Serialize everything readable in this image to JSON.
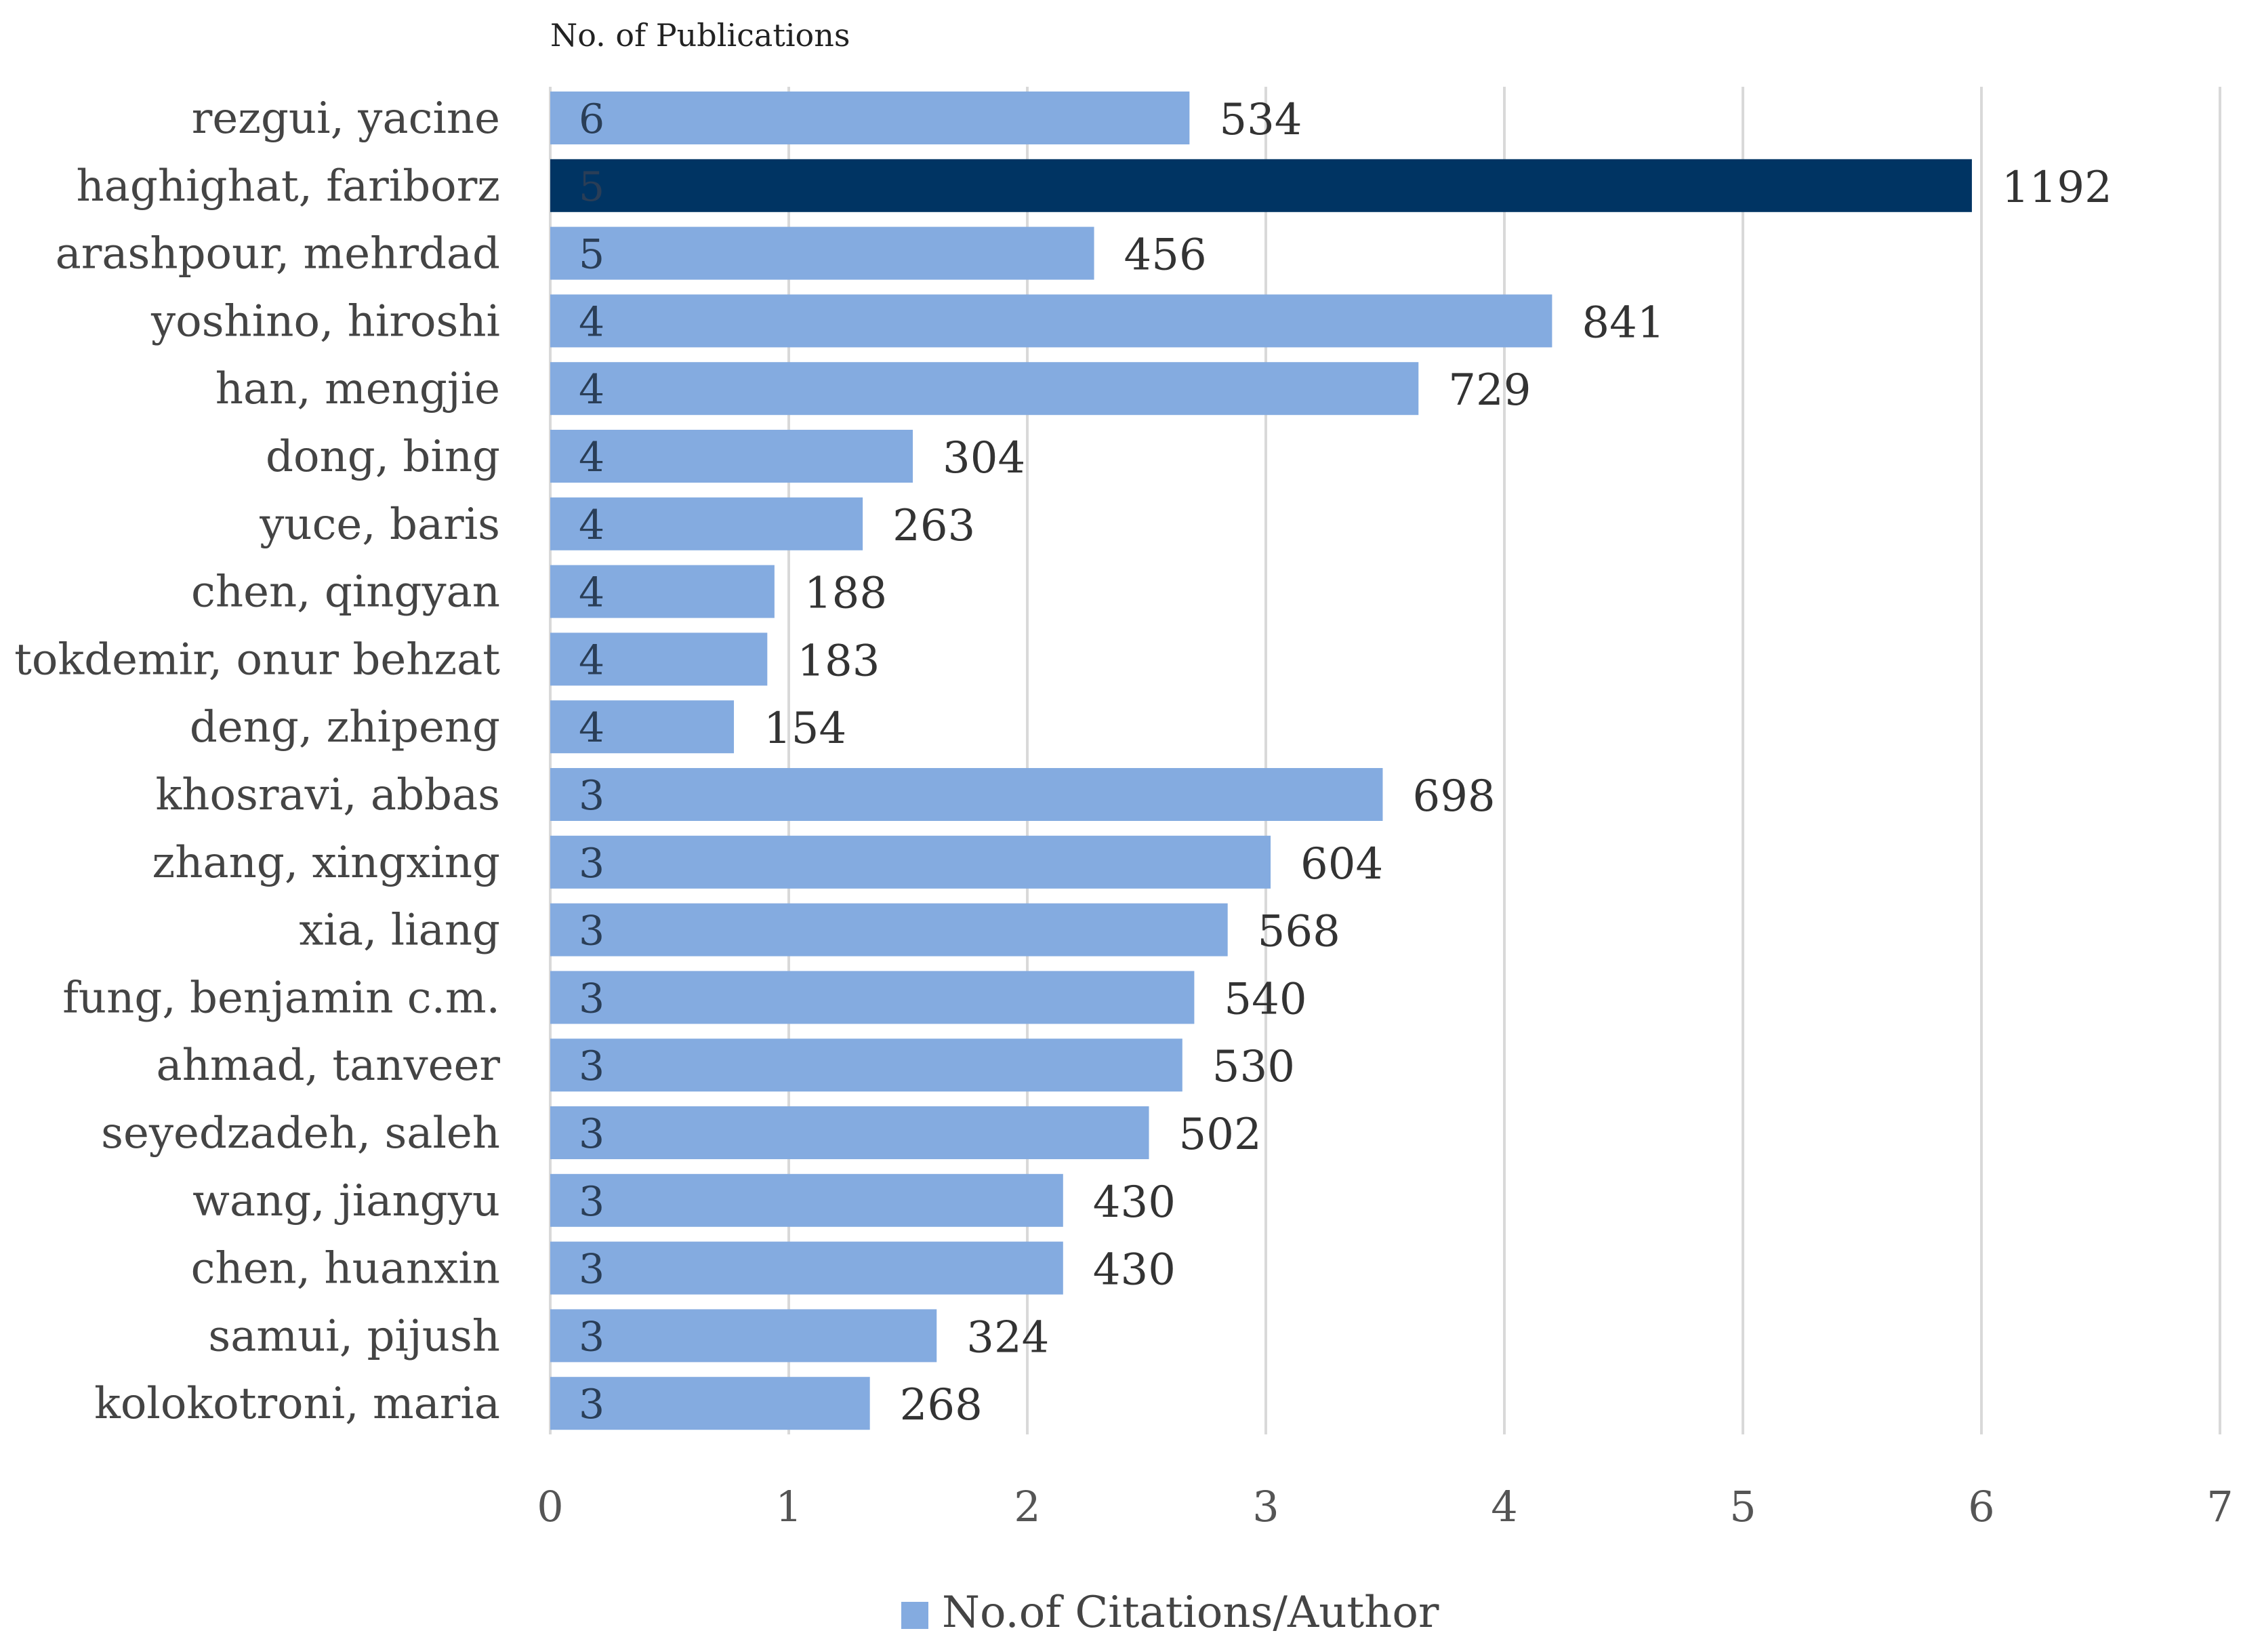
{
  "chart_data": {
    "type": "bar",
    "orientation": "horizontal",
    "title": "",
    "header_label": "No. of Publications",
    "categories": [
      "rezgui, yacine",
      "haghighat, fariborz",
      "arashpour, mehrdad",
      "yoshino, hiroshi",
      "han, mengjie",
      "dong, bing",
      "yuce, baris",
      "chen, qingyan",
      "tokdemir, onur behzat",
      "deng, zhipeng",
      "khosravi, abbas",
      "zhang, xingxing",
      "xia, liang",
      "fung, benjamin c.m.",
      "ahmad, tanveer",
      "seyedzadeh, saleh",
      "wang, jiangyu",
      "chen, huanxin",
      "samui, pijush",
      "kolokotroni, maria"
    ],
    "publications": [
      6,
      5,
      5,
      4,
      4,
      4,
      4,
      4,
      4,
      4,
      3,
      3,
      3,
      3,
      3,
      3,
      3,
      3,
      3,
      3
    ],
    "citations_per_author": [
      534,
      1192,
      456,
      841,
      729,
      304,
      263,
      188,
      183,
      154,
      698,
      604,
      568,
      540,
      530,
      502,
      430,
      430,
      324,
      268
    ],
    "values_axis_units": [
      2.68,
      5.96,
      2.28,
      4.2,
      3.64,
      1.52,
      1.31,
      0.94,
      0.91,
      0.77,
      3.49,
      3.02,
      2.84,
      2.7,
      2.65,
      2.51,
      2.15,
      2.15,
      1.62,
      1.34
    ],
    "highlight_index": 1,
    "xlim": [
      0,
      7
    ],
    "xticks": [
      "0",
      "1",
      "2",
      "3",
      "4",
      "5",
      "6",
      "7"
    ],
    "grid": true,
    "legend": {
      "label": "No.of Citations/Author",
      "position": "bottom"
    },
    "colors": {
      "bar": "#84ABE0",
      "highlight": "#003463",
      "grid": "#d9d9d9",
      "inbar_text_light": "#ffffff"
    }
  }
}
